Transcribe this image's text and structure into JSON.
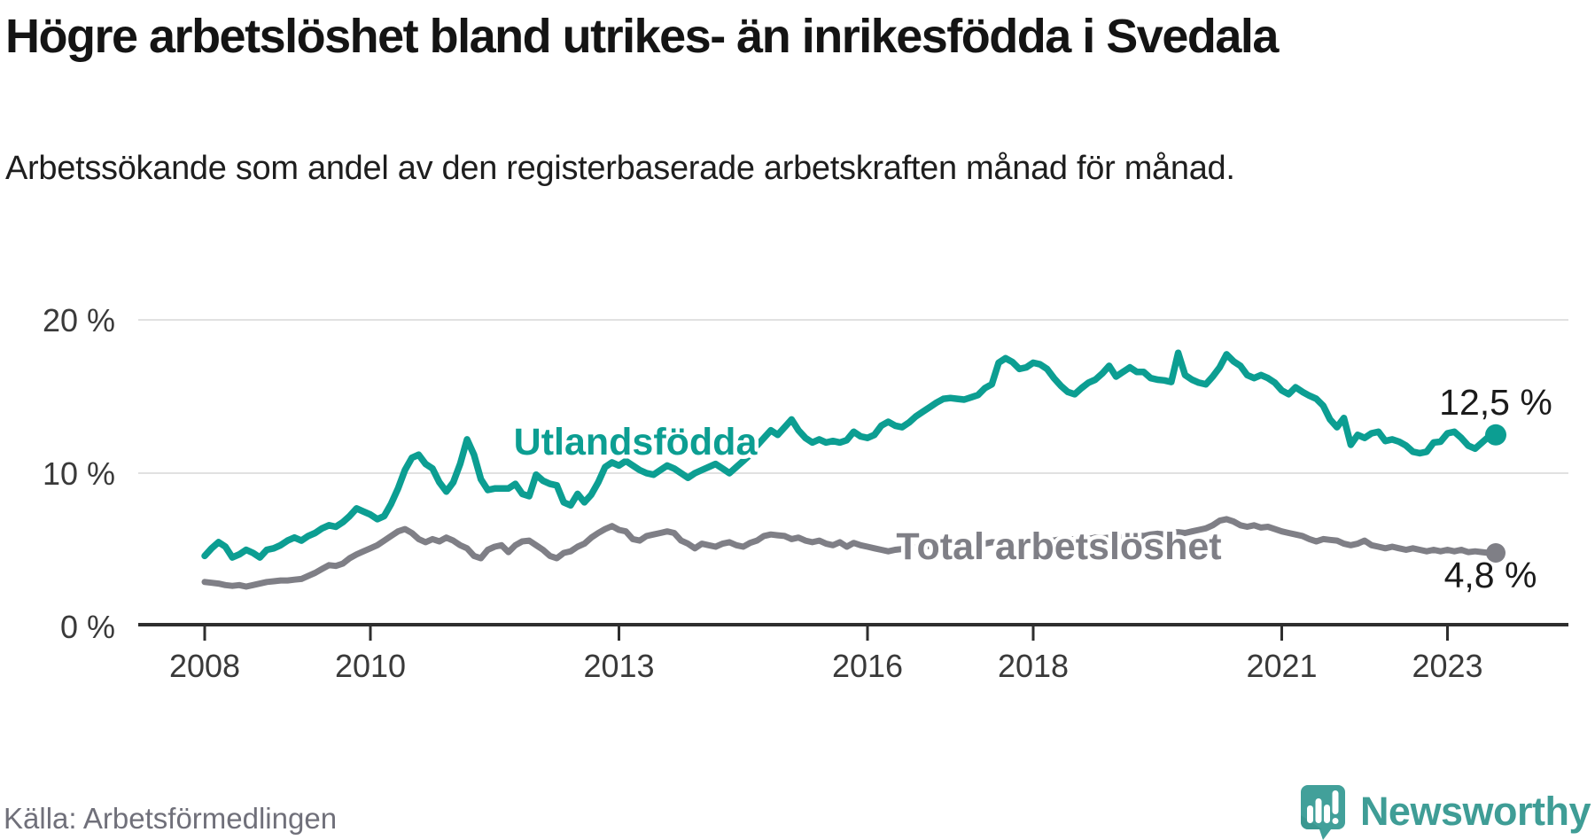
{
  "chart_data": {
    "type": "line",
    "title": "Högre arbetslöshet bland utrikes- än inrikesfödda i Svedala",
    "subtitle": "Arbetssökande som andel av den registerbaserade arbetskraften månad för månad.",
    "unit": "%",
    "x_start_year": 2008,
    "points_per_year": 12,
    "x_ticks": [
      "2008",
      "2010",
      "2013",
      "2016",
      "2018",
      "2021",
      "2023"
    ],
    "y_ticks": [
      {
        "value": 0,
        "label": "0 %"
      },
      {
        "value": 10,
        "label": "10 %"
      },
      {
        "value": 20,
        "label": "20 %"
      }
    ],
    "ylim": [
      0,
      21
    ],
    "grid": "horizontal",
    "legend_position": "inline-labels",
    "series": [
      {
        "name": "Utlandsfödda",
        "color": "#0c9e92",
        "end_label": "12,5 %",
        "end_value": 12.5,
        "values": [
          4.6,
          5.1,
          5.5,
          5.2,
          4.5,
          4.7,
          5.0,
          4.8,
          4.5,
          5.0,
          5.1,
          5.3,
          5.6,
          5.8,
          5.6,
          5.9,
          6.1,
          6.4,
          6.6,
          6.5,
          6.8,
          7.2,
          7.7,
          7.5,
          7.3,
          7.0,
          7.2,
          8.0,
          9.0,
          10.2,
          11.0,
          11.2,
          10.6,
          10.3,
          9.4,
          8.8,
          9.4,
          10.6,
          12.2,
          11.2,
          9.6,
          8.9,
          9.0,
          9.0,
          9.0,
          9.3,
          8.65,
          8.5,
          9.9,
          9.5,
          9.3,
          9.2,
          8.1,
          7.9,
          8.65,
          8.1,
          8.6,
          9.4,
          10.4,
          10.7,
          10.5,
          10.8,
          10.5,
          10.2,
          10.0,
          9.9,
          10.2,
          10.5,
          10.3,
          10.0,
          9.7,
          10.0,
          10.2,
          10.4,
          10.6,
          10.3,
          10.0,
          10.4,
          10.8,
          11.2,
          11.8,
          12.3,
          12.8,
          12.5,
          13.0,
          13.5,
          12.8,
          12.3,
          12.0,
          12.2,
          12.0,
          12.1,
          12.0,
          12.15,
          12.7,
          12.4,
          12.3,
          12.5,
          13.1,
          13.35,
          13.1,
          13.0,
          13.3,
          13.7,
          14.0,
          14.3,
          14.6,
          14.85,
          14.9,
          14.85,
          14.8,
          14.95,
          15.1,
          15.55,
          15.8,
          17.2,
          17.5,
          17.25,
          16.8,
          16.9,
          17.2,
          17.1,
          16.8,
          16.2,
          15.7,
          15.3,
          15.15,
          15.55,
          15.9,
          16.1,
          16.5,
          17.0,
          16.3,
          16.6,
          16.9,
          16.6,
          16.6,
          16.2,
          16.1,
          16.05,
          15.95,
          17.85,
          16.4,
          16.1,
          15.9,
          15.8,
          16.3,
          16.9,
          17.75,
          17.3,
          17.0,
          16.4,
          16.2,
          16.4,
          16.2,
          15.9,
          15.4,
          15.15,
          15.6,
          15.3,
          15.05,
          14.85,
          14.4,
          13.5,
          13.0,
          13.6,
          11.85,
          12.5,
          12.3,
          12.6,
          12.7,
          12.1,
          12.2,
          12.05,
          11.8,
          11.4,
          11.3,
          11.4,
          12.0,
          12.05,
          12.6,
          12.7,
          12.3,
          11.8,
          11.6,
          12.0,
          12.4,
          12.5
        ]
      },
      {
        "name": "Total arbetslöshet",
        "color": "#7f7f86",
        "end_label": "4,8 %",
        "end_value": 4.8,
        "values": [
          2.9,
          2.85,
          2.8,
          2.7,
          2.65,
          2.7,
          2.6,
          2.7,
          2.8,
          2.9,
          2.95,
          3.0,
          3.0,
          3.05,
          3.1,
          3.3,
          3.5,
          3.75,
          4.0,
          3.95,
          4.1,
          4.45,
          4.7,
          4.9,
          5.1,
          5.3,
          5.6,
          5.9,
          6.2,
          6.35,
          6.1,
          5.7,
          5.5,
          5.7,
          5.55,
          5.8,
          5.6,
          5.3,
          5.1,
          4.6,
          4.45,
          5.0,
          5.2,
          5.3,
          4.85,
          5.3,
          5.55,
          5.6,
          5.3,
          5.0,
          4.6,
          4.45,
          4.8,
          4.9,
          5.2,
          5.4,
          5.8,
          6.1,
          6.35,
          6.55,
          6.3,
          6.2,
          5.7,
          5.6,
          5.9,
          6.0,
          6.1,
          6.2,
          6.1,
          5.6,
          5.4,
          5.1,
          5.4,
          5.3,
          5.2,
          5.4,
          5.5,
          5.3,
          5.2,
          5.45,
          5.6,
          5.9,
          6.0,
          5.95,
          5.9,
          5.7,
          5.8,
          5.6,
          5.5,
          5.6,
          5.4,
          5.3,
          5.5,
          5.2,
          5.45,
          5.3,
          5.2,
          5.1,
          5.0,
          4.9,
          5.0,
          5.05,
          5.1,
          5.15,
          5.2,
          5.25,
          5.2,
          5.3,
          5.3,
          5.35,
          5.3,
          5.4,
          5.45,
          5.4,
          5.5,
          5.45,
          5.5,
          5.55,
          5.5,
          5.6,
          5.55,
          5.6,
          5.65,
          5.6,
          5.7,
          5.65,
          5.7,
          5.75,
          5.7,
          5.8,
          5.75,
          5.8,
          5.85,
          5.8,
          5.9,
          5.95,
          5.9,
          6.0,
          6.05,
          6.0,
          6.1,
          6.15,
          6.1,
          6.2,
          6.3,
          6.4,
          6.6,
          6.9,
          7.0,
          6.85,
          6.6,
          6.5,
          6.6,
          6.45,
          6.5,
          6.35,
          6.2,
          6.1,
          6.0,
          5.9,
          5.7,
          5.55,
          5.7,
          5.65,
          5.6,
          5.4,
          5.3,
          5.4,
          5.6,
          5.3,
          5.2,
          5.1,
          5.2,
          5.1,
          5.0,
          5.1,
          5.0,
          4.9,
          5.0,
          4.9,
          5.0,
          4.9,
          5.0,
          4.85,
          4.9,
          4.85,
          4.8,
          4.8
        ]
      }
    ]
  },
  "footer": {
    "source": "Källa: Arbetsförmedlingen",
    "brand": "Newsworthy"
  },
  "icons": {
    "brand_icon": "newsworthy-speech-bubble-bar-chart-icon"
  },
  "colors": {
    "accent_teal": "#0c9e92",
    "neutral_gray": "#7f7f86",
    "brand_teal": "#42a09a",
    "grid": "#e1e1e1",
    "axis": "#2e2e2e"
  }
}
